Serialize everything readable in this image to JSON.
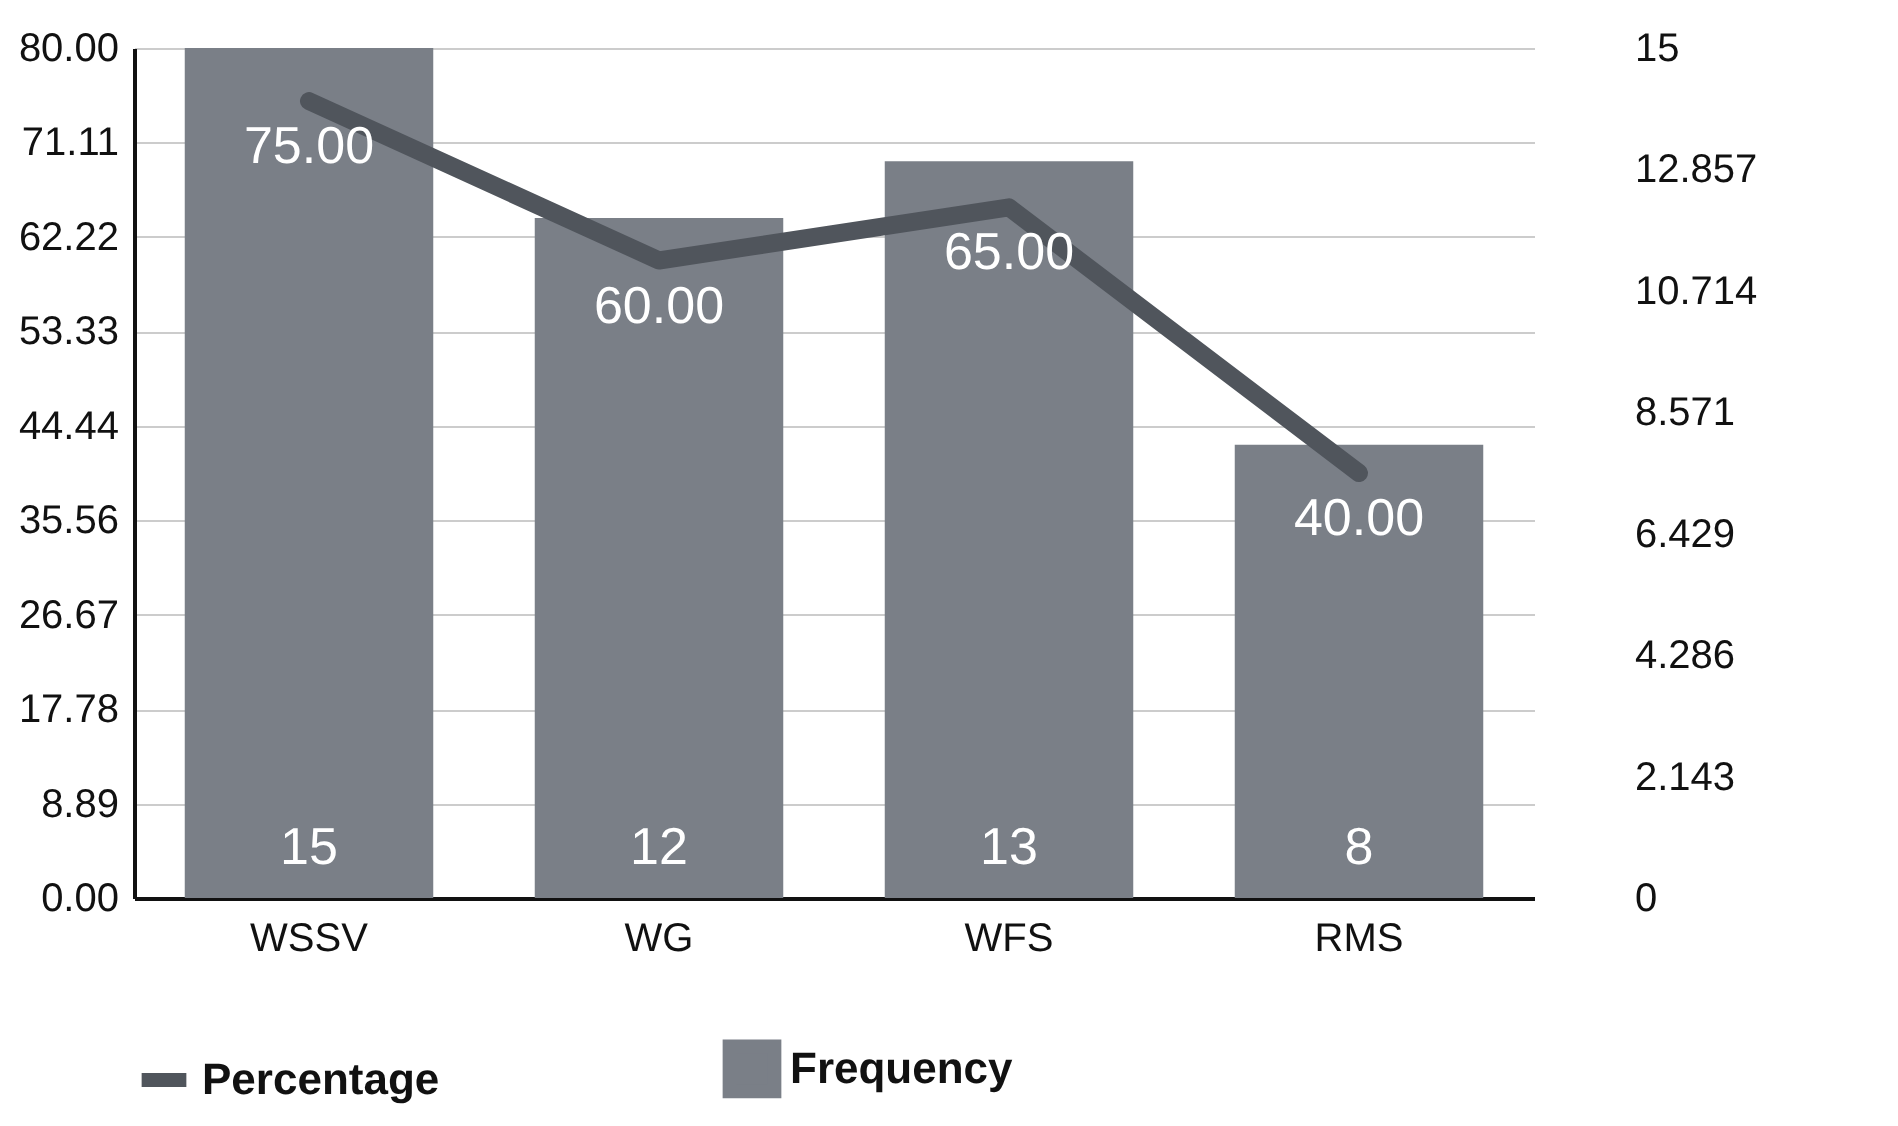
{
  "chart_data": {
    "type": "bar",
    "categories": [
      "WSSV",
      "WG",
      "WFS",
      "RMS"
    ],
    "series": [
      {
        "name": "Percentage",
        "type": "line",
        "axis": "y",
        "color": "#50555c",
        "values": [
          75,
          60,
          65,
          40
        ],
        "value_labels": [
          "75.00",
          "60.00",
          "65.00",
          "40.00"
        ]
      },
      {
        "name": "Frequency",
        "axis": "y2",
        "color": "#7a7f87",
        "values": [
          15,
          12,
          13,
          8
        ],
        "value_labels": [
          "15",
          "12",
          "13",
          "8"
        ]
      }
    ],
    "ylim": [
      0,
      80
    ],
    "yticks": [
      {
        "value": 0,
        "label": "0.00"
      },
      8.89,
      17.78,
      26.67,
      35.56,
      44.44,
      53.33,
      62.22,
      71.11,
      {
        "value": 80,
        "label": "80.00"
      }
    ],
    "y2lim": [
      0,
      15
    ],
    "y2ticks": [
      0,
      2.143,
      4.286,
      6.429,
      8.571,
      10.714,
      12.857,
      15
    ],
    "grid": "y",
    "legend": "bottom"
  }
}
